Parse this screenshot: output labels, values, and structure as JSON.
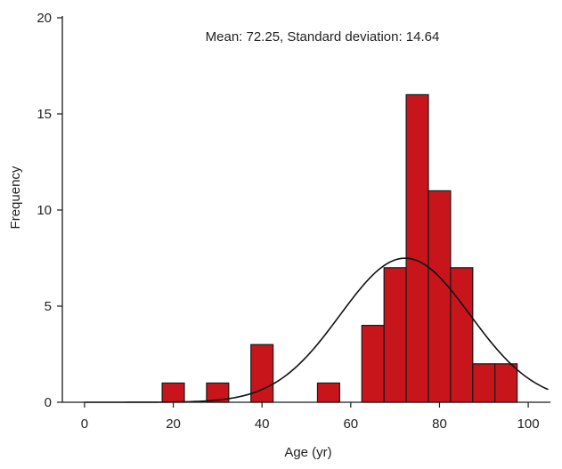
{
  "chart_data": {
    "type": "bar",
    "title": "",
    "annotation": "Mean: 72.25, Standard deviation: 14.64",
    "xlabel": "Age (yr)",
    "ylabel": "Frequency",
    "xlim": [
      -5,
      105
    ],
    "ylim": [
      0,
      20
    ],
    "xticks": [
      "0",
      "20",
      "40",
      "60",
      "80",
      "100"
    ],
    "yticks": [
      "0",
      "5",
      "10",
      "15",
      "20"
    ],
    "bin_width": 5,
    "bins": [
      {
        "start": 17.5,
        "end": 22.5,
        "count": 1
      },
      {
        "start": 27.5,
        "end": 32.5,
        "count": 1
      },
      {
        "start": 37.5,
        "end": 42.5,
        "count": 3
      },
      {
        "start": 52.5,
        "end": 57.5,
        "count": 1
      },
      {
        "start": 62.5,
        "end": 67.5,
        "count": 4
      },
      {
        "start": 67.5,
        "end": 72.5,
        "count": 7
      },
      {
        "start": 72.5,
        "end": 77.5,
        "count": 16
      },
      {
        "start": 77.5,
        "end": 82.5,
        "count": 11
      },
      {
        "start": 82.5,
        "end": 87.5,
        "count": 7
      },
      {
        "start": 87.5,
        "end": 92.5,
        "count": 2
      },
      {
        "start": 92.5,
        "end": 97.5,
        "count": 2
      }
    ],
    "normal_curve": {
      "mean": 72.25,
      "sd": 14.64,
      "n": 55
    },
    "grid": false,
    "colors": {
      "bar_fill": "#c8151b",
      "bar_stroke": "#1a1a1a",
      "curve": "#111111",
      "axis": "#1a1a1a"
    }
  }
}
